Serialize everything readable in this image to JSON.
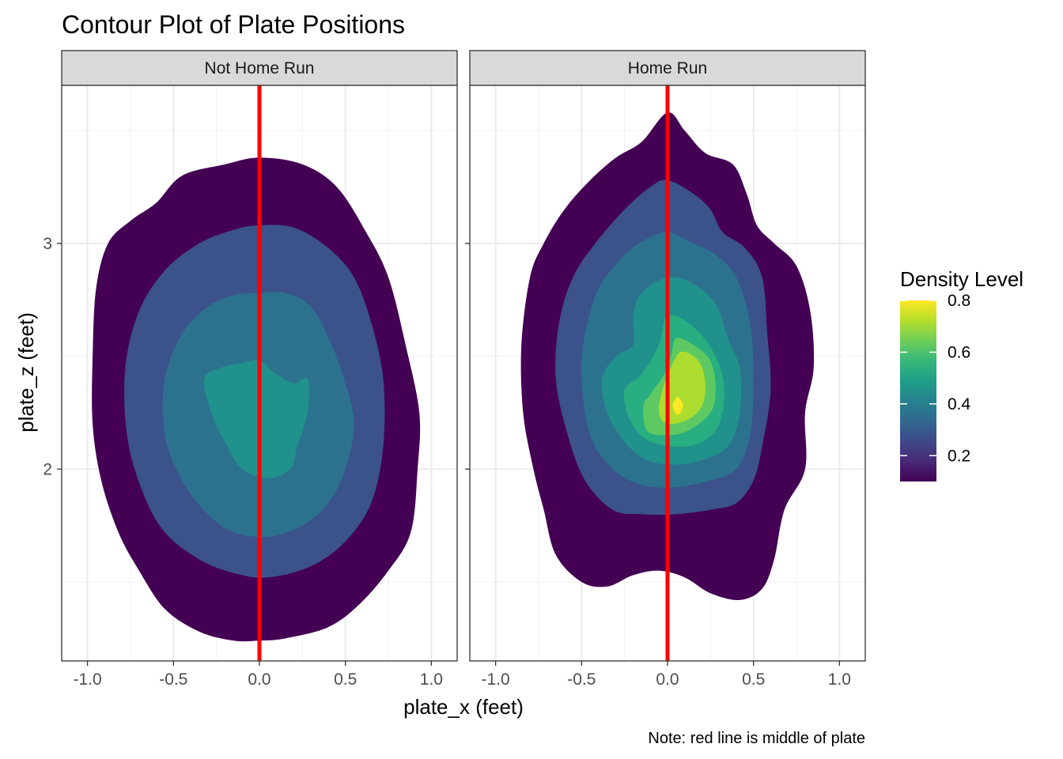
{
  "chart_data": {
    "type": "contour",
    "title": "Contour Plot of Plate Positions",
    "xlabel": "plate_x (feet)",
    "ylabel": "plate_z (feet)",
    "caption": "Note: red line is middle of plate",
    "xlim": [
      -1.15,
      1.15
    ],
    "ylim": [
      1.15,
      3.7
    ],
    "x_ticks": [
      -1.0,
      -0.5,
      0.0,
      0.5,
      1.0
    ],
    "x_tick_labels": [
      "-1.0",
      "-0.5",
      "0.0",
      "0.5",
      "1.0"
    ],
    "y_ticks": [
      2,
      3
    ],
    "y_tick_labels": [
      "2",
      "3"
    ],
    "grid": true,
    "reference_line": {
      "x": 0.0,
      "color": "#ff0000"
    },
    "legend": {
      "title": "Density Level",
      "position": "right",
      "range": [
        0.1,
        0.8
      ],
      "ticks": [
        0.2,
        0.4,
        0.6,
        0.8
      ],
      "tick_labels": [
        "0.2",
        "0.4",
        "0.6",
        "0.8"
      ],
      "colormap": "viridis"
    },
    "panels": [
      {
        "label": "Not Home Run",
        "density_peak": 0.45,
        "peak": {
          "x": -0.02,
          "z": 2.25
        },
        "contours": [
          {
            "level": 0.1,
            "color": "#440154",
            "points": [
              [
                0.0,
                3.38
              ],
              [
                0.25,
                3.35
              ],
              [
                0.45,
                3.25
              ],
              [
                0.62,
                3.05
              ],
              [
                0.75,
                2.85
              ],
              [
                0.85,
                2.55
              ],
              [
                0.93,
                2.25
              ],
              [
                0.92,
                2.0
              ],
              [
                0.88,
                1.72
              ],
              [
                0.75,
                1.55
              ],
              [
                0.58,
                1.4
              ],
              [
                0.4,
                1.3
              ],
              [
                0.15,
                1.25
              ],
              [
                0.0,
                1.24
              ],
              [
                -0.15,
                1.24
              ],
              [
                -0.35,
                1.28
              ],
              [
                -0.55,
                1.38
              ],
              [
                -0.7,
                1.55
              ],
              [
                -0.82,
                1.72
              ],
              [
                -0.92,
                1.95
              ],
              [
                -0.97,
                2.2
              ],
              [
                -0.97,
                2.5
              ],
              [
                -0.95,
                2.8
              ],
              [
                -0.88,
                3.0
              ],
              [
                -0.75,
                3.1
              ],
              [
                -0.6,
                3.18
              ],
              [
                -0.45,
                3.3
              ],
              [
                -0.2,
                3.35
              ]
            ]
          },
          {
            "level": 0.2,
            "color": "#3b528b",
            "points": [
              [
                0.0,
                3.08
              ],
              [
                0.2,
                3.07
              ],
              [
                0.4,
                2.98
              ],
              [
                0.55,
                2.85
              ],
              [
                0.65,
                2.65
              ],
              [
                0.72,
                2.4
              ],
              [
                0.72,
                2.1
              ],
              [
                0.65,
                1.85
              ],
              [
                0.5,
                1.68
              ],
              [
                0.3,
                1.57
              ],
              [
                0.05,
                1.52
              ],
              [
                -0.15,
                1.54
              ],
              [
                -0.35,
                1.6
              ],
              [
                -0.55,
                1.72
              ],
              [
                -0.68,
                1.9
              ],
              [
                -0.77,
                2.15
              ],
              [
                -0.78,
                2.45
              ],
              [
                -0.7,
                2.7
              ],
              [
                -0.55,
                2.88
              ],
              [
                -0.35,
                3.0
              ],
              [
                -0.15,
                3.06
              ]
            ]
          },
          {
            "level": 0.3,
            "color": "#2c728e",
            "points": [
              [
                0.0,
                2.78
              ],
              [
                0.15,
                2.78
              ],
              [
                0.3,
                2.72
              ],
              [
                0.42,
                2.55
              ],
              [
                0.5,
                2.38
              ],
              [
                0.55,
                2.2
              ],
              [
                0.5,
                2.0
              ],
              [
                0.4,
                1.85
              ],
              [
                0.25,
                1.75
              ],
              [
                0.05,
                1.7
              ],
              [
                -0.15,
                1.72
              ],
              [
                -0.3,
                1.8
              ],
              [
                -0.45,
                1.95
              ],
              [
                -0.55,
                2.15
              ],
              [
                -0.55,
                2.4
              ],
              [
                -0.45,
                2.6
              ],
              [
                -0.3,
                2.72
              ],
              [
                -0.15,
                2.77
              ]
            ]
          },
          {
            "level": 0.4,
            "color": "#21918c",
            "points": [
              [
                0.0,
                2.48
              ],
              [
                0.1,
                2.42
              ],
              [
                0.2,
                2.38
              ],
              [
                0.28,
                2.4
              ],
              [
                0.28,
                2.25
              ],
              [
                0.22,
                2.1
              ],
              [
                0.18,
                2.0
              ],
              [
                0.05,
                1.96
              ],
              [
                -0.1,
                2.0
              ],
              [
                -0.2,
                2.12
              ],
              [
                -0.28,
                2.25
              ],
              [
                -0.32,
                2.4
              ],
              [
                -0.22,
                2.45
              ],
              [
                -0.1,
                2.47
              ]
            ]
          }
        ]
      },
      {
        "label": "Home Run",
        "density_peak": 0.8,
        "peak": {
          "x": 0.06,
          "z": 2.28
        },
        "contours": [
          {
            "level": 0.1,
            "color": "#440154",
            "points": [
              [
                0.0,
                3.58
              ],
              [
                0.1,
                3.5
              ],
              [
                0.22,
                3.4
              ],
              [
                0.38,
                3.35
              ],
              [
                0.46,
                3.22
              ],
              [
                0.52,
                3.08
              ],
              [
                0.62,
                3.0
              ],
              [
                0.75,
                2.9
              ],
              [
                0.83,
                2.7
              ],
              [
                0.85,
                2.45
              ],
              [
                0.8,
                2.25
              ],
              [
                0.8,
                2.0
              ],
              [
                0.68,
                1.82
              ],
              [
                0.62,
                1.6
              ],
              [
                0.55,
                1.47
              ],
              [
                0.42,
                1.42
              ],
              [
                0.25,
                1.45
              ],
              [
                0.1,
                1.52
              ],
              [
                -0.05,
                1.55
              ],
              [
                -0.2,
                1.53
              ],
              [
                -0.35,
                1.48
              ],
              [
                -0.5,
                1.5
              ],
              [
                -0.65,
                1.62
              ],
              [
                -0.72,
                1.82
              ],
              [
                -0.78,
                2.0
              ],
              [
                -0.84,
                2.25
              ],
              [
                -0.85,
                2.55
              ],
              [
                -0.8,
                2.85
              ],
              [
                -0.72,
                3.0
              ],
              [
                -0.6,
                3.15
              ],
              [
                -0.45,
                3.28
              ],
              [
                -0.3,
                3.38
              ],
              [
                -0.15,
                3.45
              ]
            ]
          },
          {
            "level": 0.2,
            "color": "#3b528b",
            "points": [
              [
                0.0,
                3.28
              ],
              [
                0.15,
                3.22
              ],
              [
                0.25,
                3.15
              ],
              [
                0.32,
                3.05
              ],
              [
                0.45,
                2.98
              ],
              [
                0.55,
                2.85
              ],
              [
                0.58,
                2.6
              ],
              [
                0.6,
                2.35
              ],
              [
                0.55,
                2.1
              ],
              [
                0.5,
                1.95
              ],
              [
                0.4,
                1.85
              ],
              [
                0.25,
                1.82
              ],
              [
                0.05,
                1.8
              ],
              [
                -0.15,
                1.8
              ],
              [
                -0.32,
                1.82
              ],
              [
                -0.48,
                1.95
              ],
              [
                -0.58,
                2.15
              ],
              [
                -0.65,
                2.4
              ],
              [
                -0.63,
                2.65
              ],
              [
                -0.55,
                2.85
              ],
              [
                -0.42,
                3.0
              ],
              [
                -0.25,
                3.15
              ],
              [
                -0.1,
                3.25
              ]
            ]
          },
          {
            "level": 0.3,
            "color": "#2c728e",
            "points": [
              [
                0.0,
                3.05
              ],
              [
                0.15,
                3.0
              ],
              [
                0.28,
                2.95
              ],
              [
                0.4,
                2.85
              ],
              [
                0.48,
                2.65
              ],
              [
                0.5,
                2.4
              ],
              [
                0.48,
                2.15
              ],
              [
                0.4,
                2.0
              ],
              [
                0.25,
                1.95
              ],
              [
                0.05,
                1.92
              ],
              [
                -0.15,
                1.93
              ],
              [
                -0.32,
                2.0
              ],
              [
                -0.45,
                2.15
              ],
              [
                -0.5,
                2.4
              ],
              [
                -0.48,
                2.6
              ],
              [
                -0.4,
                2.8
              ],
              [
                -0.25,
                2.95
              ],
              [
                -0.12,
                3.02
              ]
            ]
          },
          {
            "level": 0.4,
            "color": "#21918c",
            "points": [
              [
                0.0,
                2.85
              ],
              [
                0.15,
                2.82
              ],
              [
                0.28,
                2.73
              ],
              [
                0.35,
                2.58
              ],
              [
                0.42,
                2.45
              ],
              [
                0.42,
                2.25
              ],
              [
                0.35,
                2.1
              ],
              [
                0.2,
                2.04
              ],
              [
                0.05,
                2.02
              ],
              [
                -0.12,
                2.04
              ],
              [
                -0.25,
                2.12
              ],
              [
                -0.35,
                2.25
              ],
              [
                -0.38,
                2.4
              ],
              [
                -0.3,
                2.5
              ],
              [
                -0.2,
                2.55
              ],
              [
                -0.2,
                2.68
              ],
              [
                -0.15,
                2.78
              ]
            ]
          },
          {
            "level": 0.5,
            "color": "#28ae80",
            "points": [
              [
                0.0,
                2.68
              ],
              [
                0.15,
                2.63
              ],
              [
                0.28,
                2.5
              ],
              [
                0.33,
                2.35
              ],
              [
                0.3,
                2.2
              ],
              [
                0.2,
                2.12
              ],
              [
                0.05,
                2.1
              ],
              [
                -0.12,
                2.13
              ],
              [
                -0.22,
                2.22
              ],
              [
                -0.25,
                2.35
              ],
              [
                -0.15,
                2.42
              ],
              [
                -0.05,
                2.55
              ]
            ]
          },
          {
            "level": 0.6,
            "color": "#5ec962",
            "points": [
              [
                0.05,
                2.58
              ],
              [
                0.15,
                2.55
              ],
              [
                0.25,
                2.48
              ],
              [
                0.28,
                2.35
              ],
              [
                0.25,
                2.25
              ],
              [
                0.12,
                2.17
              ],
              [
                0.0,
                2.15
              ],
              [
                -0.12,
                2.17
              ],
              [
                -0.14,
                2.28
              ],
              [
                -0.1,
                2.33
              ],
              [
                -0.02,
                2.42
              ],
              [
                0.02,
                2.5
              ]
            ]
          },
          {
            "level": 0.7,
            "color": "#addc30",
            "points": [
              [
                0.08,
                2.52
              ],
              [
                0.18,
                2.48
              ],
              [
                0.22,
                2.38
              ],
              [
                0.2,
                2.28
              ],
              [
                0.12,
                2.22
              ],
              [
                0.0,
                2.2
              ],
              [
                -0.05,
                2.25
              ],
              [
                -0.03,
                2.35
              ],
              [
                0.02,
                2.45
              ]
            ]
          },
          {
            "level": 0.8,
            "color": "#fde725",
            "points": [
              [
                0.06,
                2.32
              ],
              [
                0.09,
                2.28
              ],
              [
                0.06,
                2.24
              ],
              [
                0.03,
                2.28
              ]
            ]
          }
        ]
      }
    ]
  }
}
